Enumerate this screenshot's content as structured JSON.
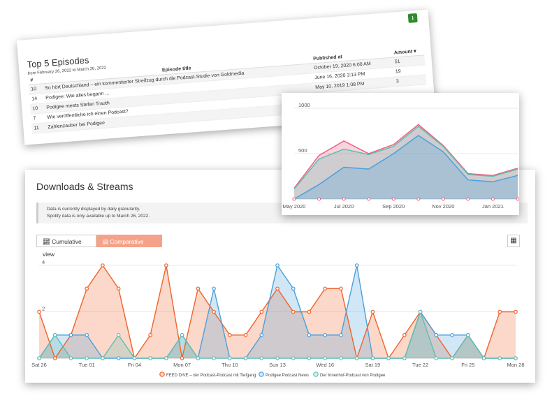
{
  "top5": {
    "title": "Top 5 Episodes",
    "date_range": "from February 26, 2022 to March 26, 2022",
    "info_icon": "i",
    "headers": [
      "#",
      "Episode title",
      "Published at",
      "Amount ▾"
    ],
    "rows": [
      [
        "10",
        "So hört Deutschland – ein kommentierter Streifzug durch die Podcast-Studie von Goldmedia",
        "October 19, 2020 6:00 AM",
        "51"
      ],
      [
        "14",
        "Podigee: Wie alles begann ...",
        "June 16, 2020 3:13 PM",
        "19"
      ],
      [
        "10",
        "Podigee meets Stefan Trauth",
        "May 10, 2019 1:08 PM",
        "3"
      ],
      [
        "7",
        "Wie veröffentliche ich einen Podcast?",
        "",
        ""
      ],
      [
        "11",
        "Zahlenzauber bei Podigee",
        "",
        ""
      ]
    ]
  },
  "downloads": {
    "title": "Downloads & Streams",
    "notice_line1": "Data is currently displayed by daily granularity.",
    "notice_line2": "Spotify data is only available up to March 26, 2022.",
    "cumulative_label": "Cumulative view",
    "comparative_label": "Comparative view",
    "table_icon": "table-icon"
  },
  "colors": {
    "red": "#f0632b",
    "blue": "#4aa0dc",
    "teal": "#5fbfb2",
    "pink": "#f06080",
    "accent": "#f4a38a"
  },
  "chart_data": [
    {
      "type": "area",
      "title": "",
      "y_ticks": [
        "4",
        "2"
      ],
      "ylim": [
        0,
        4
      ],
      "x_tick_labels": [
        "Sat 26",
        "Tue 01",
        "Fri 04",
        "Mon 07",
        "Thu 10",
        "Sun 13",
        "Wed 16",
        "Sat 19",
        "Tue 22",
        "Fri 25",
        "Mon 28"
      ],
      "x_tick_index": [
        0,
        3,
        6,
        9,
        12,
        15,
        18,
        21,
        24,
        27,
        30
      ],
      "series": [
        {
          "name": "FEED DIVE – der Podcast-Podcast mit Tiefgang",
          "color": "#f0632b",
          "values": [
            2,
            0,
            1,
            3,
            4,
            3,
            0,
            1,
            4,
            0,
            3,
            2,
            1,
            1,
            2,
            3,
            2,
            2,
            3,
            3,
            0,
            2,
            0,
            1,
            2,
            1,
            0,
            1,
            0,
            2,
            2
          ]
        },
        {
          "name": "Podigee Podcast News",
          "color": "#4aa0dc",
          "values": [
            0,
            1,
            1,
            1,
            0,
            0,
            0,
            0,
            0,
            1,
            0,
            3,
            0,
            0,
            1,
            4,
            3,
            1,
            1,
            1,
            4,
            0,
            0,
            0,
            2,
            1,
            1,
            1,
            0,
            0,
            0
          ]
        },
        {
          "name": "Der Innenhof-Podcast von Podigee",
          "color": "#5fbfb2",
          "values": [
            0,
            1,
            0,
            0,
            0,
            1,
            0,
            0,
            0,
            1,
            0,
            0,
            0,
            0,
            0,
            0,
            0,
            0,
            0,
            0,
            0,
            0,
            0,
            0,
            2,
            0,
            0,
            1,
            0,
            0,
            0
          ]
        }
      ],
      "legend": "bottom"
    },
    {
      "type": "area",
      "title": "",
      "y_ticks": [
        "1000",
        "500"
      ],
      "ylim": [
        0,
        1000
      ],
      "x_tick_labels": [
        "May 2020",
        "Jul 2020",
        "Sep 2020",
        "Nov 2020",
        "Jan 2021"
      ],
      "x_tick_index": [
        0,
        2,
        4,
        6,
        8
      ],
      "series": [
        {
          "name": "",
          "color": "#f06080",
          "values": [
            120,
            480,
            640,
            500,
            600,
            820,
            590,
            280,
            260,
            340
          ]
        },
        {
          "name": "",
          "color": "#5fbfb2",
          "values": [
            110,
            440,
            550,
            490,
            580,
            800,
            580,
            270,
            250,
            330
          ]
        },
        {
          "name": "",
          "color": "#4aa0dc",
          "values": [
            0,
            160,
            350,
            330,
            500,
            700,
            520,
            210,
            190,
            260
          ]
        }
      ]
    }
  ]
}
